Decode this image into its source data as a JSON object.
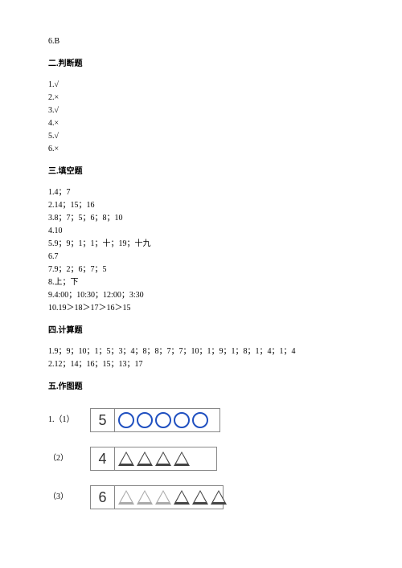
{
  "top_line": "6.B",
  "sec2": {
    "title": "二.判断题",
    "items": [
      "1.√",
      "2.×",
      "3.√",
      "4.×",
      "5.√",
      "6.×"
    ]
  },
  "sec3": {
    "title": "三.填空题",
    "items": [
      "1.4；7",
      "2.14；15；16",
      "3.8；7；5；6；8；10",
      "4.10",
      "5.9；9；1；1；十；19；十九",
      "6.7",
      "7.9；2；6；7；5",
      "8.上；下",
      "9.4:00；10:30；12:00；3:30",
      "10.19＞18＞17＞16＞15"
    ]
  },
  "sec4": {
    "title": "四.计算题",
    "items": [
      "1.9；9；10；1；5；3；4；8；8；7；7；10；1；9；1；8；1；4；1；4",
      "2.12；14；16；15；13；17"
    ]
  },
  "sec5": {
    "title": "五.作图题",
    "rows": [
      {
        "prefix": "1.（1）",
        "num": "5",
        "shapes": [
          "circle",
          "circle",
          "circle",
          "circle",
          "circle"
        ],
        "cellWidth": 130
      },
      {
        "prefix": "（2）",
        "num": "4",
        "shapes": [
          "tri-dark",
          "tri-dark",
          "tri-dark",
          "tri-dark"
        ],
        "cellWidth": 126
      },
      {
        "prefix": "（3）",
        "num": "6",
        "shapes": [
          "tri-light",
          "tri-light",
          "tri-light",
          "tri-dark",
          "tri-dark",
          "tri-dark"
        ],
        "cellWidth": 134
      }
    ]
  }
}
